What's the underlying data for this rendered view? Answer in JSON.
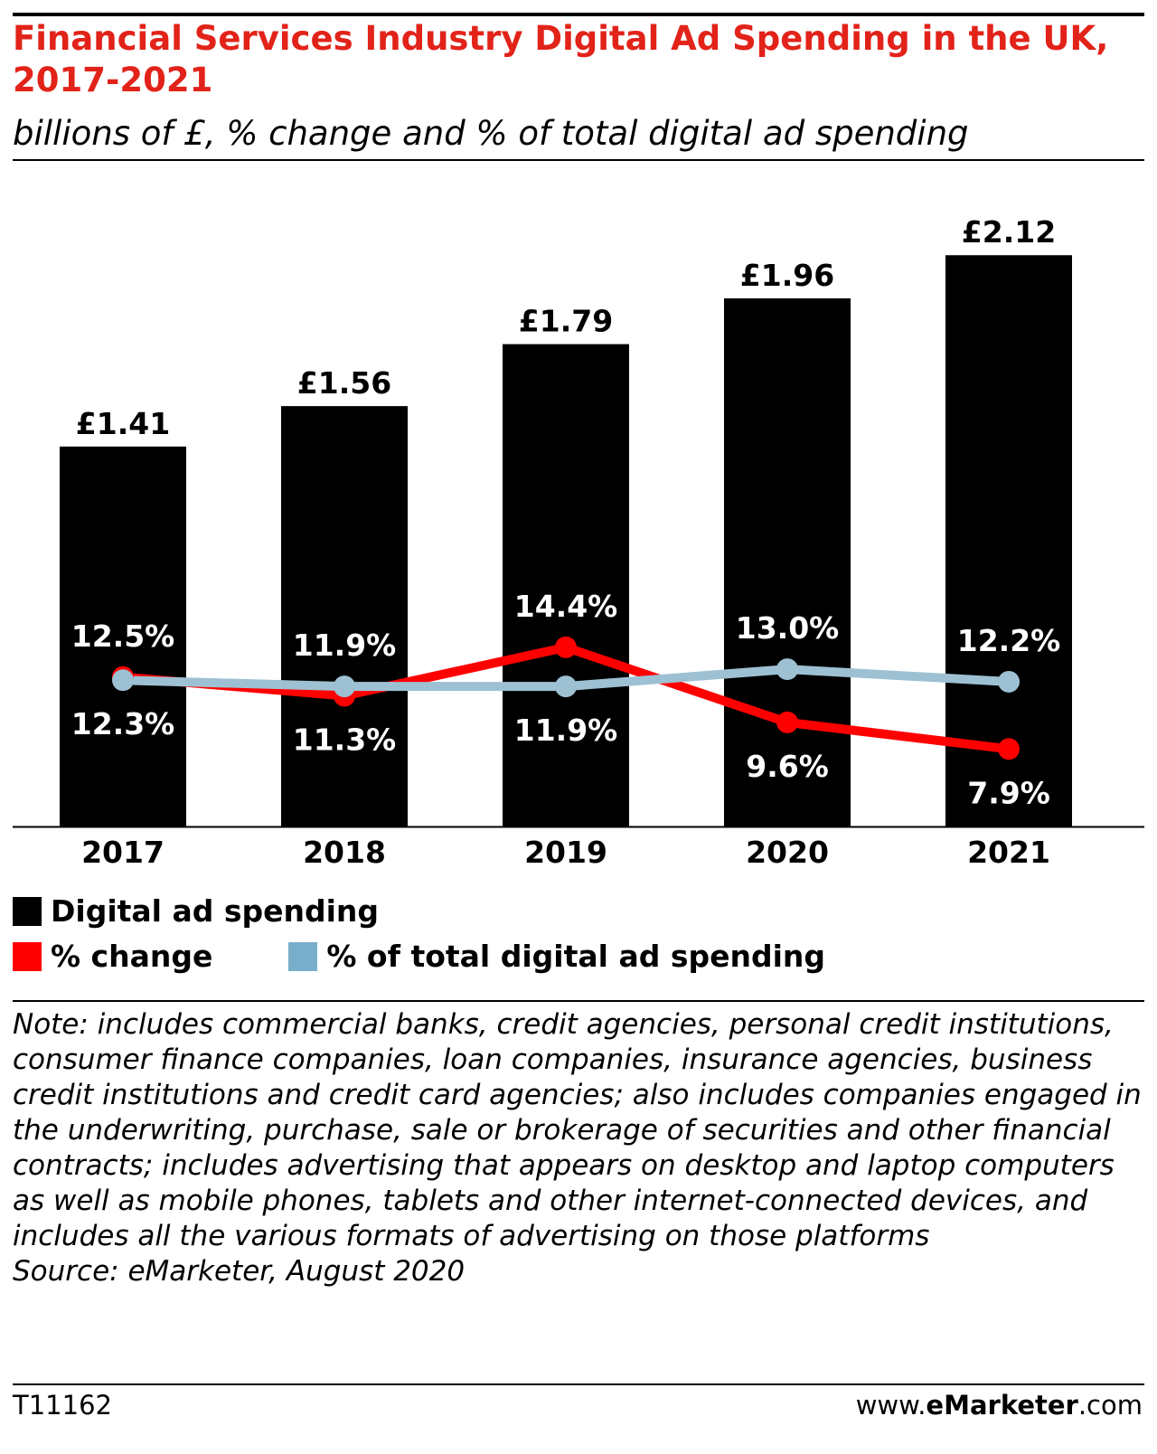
{
  "header": {
    "title": "Financial Services Industry Digital Ad Spending in the UK, 2017-2021",
    "subtitle": "billions of £, % change and % of total digital ad spending"
  },
  "colors": {
    "bars": "#000000",
    "change": "#ff0000",
    "share": "#9dc1d3",
    "title": "#e2231a"
  },
  "chart_data": {
    "type": "bar",
    "categories": [
      "2017",
      "2018",
      "2019",
      "2020",
      "2021"
    ],
    "series": [
      {
        "name": "Digital ad spending",
        "type": "bar",
        "values": [
          1.41,
          1.56,
          1.79,
          1.96,
          2.12
        ],
        "labels": [
          "£1.41",
          "£1.56",
          "£1.79",
          "£1.96",
          "£2.12"
        ]
      },
      {
        "name": "% change",
        "type": "line",
        "values": [
          12.5,
          11.3,
          14.4,
          9.6,
          7.9
        ],
        "labels": [
          "12.5%",
          "11.3%",
          "14.4%",
          "9.6%",
          "7.9%"
        ]
      },
      {
        "name": "% of total digital ad spending",
        "type": "line",
        "values": [
          12.3,
          11.9,
          11.9,
          13.0,
          12.2
        ],
        "labels": [
          "12.3%",
          "11.9%",
          "11.9%",
          "13.0%",
          "12.2%"
        ]
      }
    ],
    "ylim": [
      0,
      2.3
    ],
    "grid": false,
    "legend_position": "bottom-left"
  },
  "legend": {
    "bars": "Digital ad spending",
    "change": "% change",
    "share": "% of total digital ad spending"
  },
  "footer": {
    "note": "Note: includes commercial banks, credit agencies, personal credit institutions, consumer finance companies, loan companies, insurance agencies, business credit institutions and credit card agencies; also includes companies engaged in the underwriting, purchase, sale or brokerage of securities and other financial contracts; includes advertising that appears on desktop and laptop computers as well as mobile phones, tablets and other internet-connected devices, and includes all the various formats of advertising on those platforms",
    "source": "Source: eMarketer, August 2020",
    "chart_id": "T11162",
    "brand_prefix": "www.",
    "brand_name": "eMarketer",
    "brand_suffix": ".com"
  }
}
